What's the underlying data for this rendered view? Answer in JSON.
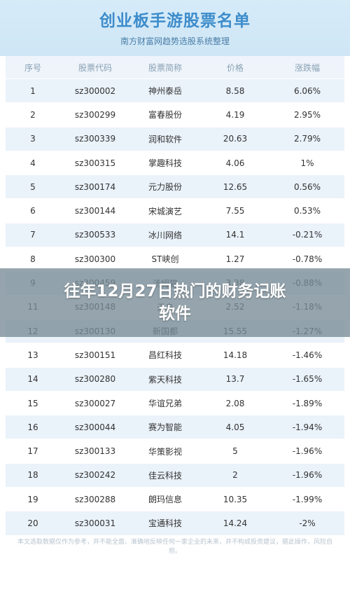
{
  "header": {
    "title": "创业板手游股票名单",
    "subtitle": "南方财富网趋势选股系统整理"
  },
  "table": {
    "columns": [
      "序号",
      "股票代码",
      "股票简称",
      "价格",
      "涨跌幅"
    ],
    "rows": [
      [
        "1",
        "sz300002",
        "神州泰岳",
        "8.58",
        "6.06%"
      ],
      [
        "2",
        "sz300299",
        "富春股份",
        "4.19",
        "2.95%"
      ],
      [
        "3",
        "sz300339",
        "润和软件",
        "20.63",
        "2.79%"
      ],
      [
        "4",
        "sz300315",
        "掌趣科技",
        "4.06",
        "1%"
      ],
      [
        "5",
        "sz300174",
        "元力股份",
        "12.65",
        "0.56%"
      ],
      [
        "6",
        "sz300144",
        "宋城演艺",
        "7.55",
        "0.53%"
      ],
      [
        "7",
        "sz300533",
        "冰川网络",
        "14.1",
        "-0.21%"
      ],
      [
        "8",
        "sz300300",
        "ST峡创",
        "1.27",
        "-0.78%"
      ],
      [
        "9",
        "sz300459",
        "汤姆猫",
        "3.38",
        "-0.88%"
      ],
      [
        "11",
        "sz300148",
        "天舟",
        "2.52",
        "-1.18%"
      ],
      [
        "12",
        "sz300130",
        "新国都",
        "15.55",
        "-1.27%"
      ],
      [
        "13",
        "sz300151",
        "昌红科技",
        "14.18",
        "-1.46%"
      ],
      [
        "14",
        "sz300280",
        "紫天科技",
        "13.7",
        "-1.65%"
      ],
      [
        "15",
        "sz300027",
        "华谊兄弟",
        "2.08",
        "-1.89%"
      ],
      [
        "16",
        "sz300044",
        "赛为智能",
        "4.05",
        "-1.94%"
      ],
      [
        "17",
        "sz300133",
        "华策影视",
        "5",
        "-1.96%"
      ],
      [
        "18",
        "sz300242",
        "佳云科技",
        "2",
        "-1.96%"
      ],
      [
        "19",
        "sz300288",
        "朗玛信息",
        "10.35",
        "-1.99%"
      ],
      [
        "20",
        "sz300031",
        "宝通科技",
        "14.24",
        "-2%"
      ]
    ]
  },
  "overlay": {
    "line1": "往年12月27日热门的财务记账",
    "line2": "软件"
  },
  "footer": {
    "text": "本文选取数据仅作为参考，并不能全面、准确地反映任何一家企业的未来，并不构成投资建议，据此操作，风险自担。"
  }
}
